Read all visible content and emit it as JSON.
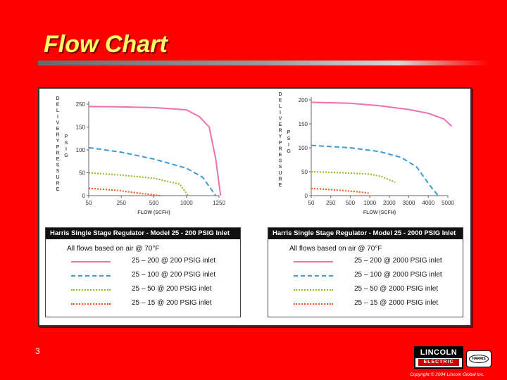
{
  "slide": {
    "title": "Flow Chart",
    "page_number": "3",
    "copyright": "Copyright © 2004 Lincoln Global Inc.",
    "colors": {
      "background": "#ff0000",
      "title": "#ffff66"
    }
  },
  "logos": {
    "lincoln_top": "LINCOLN",
    "lincoln_bottom": "ELECTRIC",
    "harris": "HARRIS"
  },
  "chart_data": [
    {
      "type": "line",
      "title": "",
      "ylabel_left": "DELIVERY PRESSURE",
      "ylabel_unit": "PSIG",
      "xlabel": "FLOW (SCFH)",
      "ylim": [
        0,
        250
      ],
      "yticks": [
        "250",
        "150",
        "100",
        "50",
        "0"
      ],
      "xticks": [
        "50",
        "250",
        "500",
        "1000",
        "1250"
      ],
      "series": [
        {
          "style": "solid",
          "color": "#f070b0",
          "x": [
            0,
            1,
            2,
            3,
            3.4,
            3.7,
            3.9,
            4.05
          ],
          "y": [
            240,
            238,
            235,
            225,
            195,
            150,
            80,
            0
          ]
        },
        {
          "style": "dashed",
          "color": "#3a9ad8",
          "x": [
            0,
            1,
            2,
            3,
            3.5,
            3.9
          ],
          "y": [
            105,
            95,
            80,
            60,
            40,
            0
          ]
        },
        {
          "style": "dotted",
          "color": "#88bb22",
          "x": [
            0,
            1,
            2,
            2.8,
            3.05
          ],
          "y": [
            50,
            45,
            38,
            25,
            0
          ]
        },
        {
          "style": "dotted",
          "color": "#ee5511",
          "x": [
            0,
            0.8,
            1.6,
            2.2
          ],
          "y": [
            16,
            12,
            5,
            0
          ]
        }
      ],
      "legend": {
        "header": "Harris Single Stage Regulator - Model 25 - 200 PSIG Inlet",
        "note": "All flows based on air @ 70°F",
        "entries": [
          "25 – 200 @ 200 PSIG inlet",
          "25 – 100 @ 200 PSIG inlet",
          "25 – 50 @ 200 PSIG inlet",
          "25 – 15 @ 200 PSIG inlet"
        ]
      }
    },
    {
      "type": "line",
      "title": "",
      "ylabel_left": "DELIVERY PRESSURE",
      "ylabel_unit": "PSIG",
      "xlabel": "FLOW (SCFH)",
      "ylim": [
        0,
        200
      ],
      "yticks": [
        "200",
        "150",
        "100",
        "50",
        "0"
      ],
      "xticks": [
        "50",
        "250",
        "500",
        "1000",
        "2000",
        "3000",
        "4000",
        "5000"
      ],
      "series": [
        {
          "style": "solid",
          "color": "#f070b0",
          "x": [
            0,
            2,
            3.5,
            5,
            6,
            6.8,
            7.2
          ],
          "y": [
            195,
            193,
            188,
            180,
            172,
            160,
            145
          ]
        },
        {
          "style": "dashed",
          "color": "#3a9ad8",
          "x": [
            0,
            2,
            3.5,
            4.6,
            5.4,
            6.1,
            6.5
          ],
          "y": [
            105,
            100,
            92,
            80,
            60,
            20,
            0
          ]
        },
        {
          "style": "dotted",
          "color": "#88bb22",
          "x": [
            0,
            1.5,
            3,
            3.6,
            4.3
          ],
          "y": [
            50,
            48,
            45,
            40,
            28
          ]
        },
        {
          "style": "dotted",
          "color": "#ee5511",
          "x": [
            0,
            1.2,
            2.4,
            3.0
          ],
          "y": [
            15,
            12,
            8,
            5
          ]
        }
      ],
      "legend": {
        "header": "Harris Single Stage Regulator - Model 25 - 2000 PSIG Inlet",
        "note": "All flows based on air @ 70°F",
        "entries": [
          "25 – 200 @ 2000 PSIG inlet",
          "25 – 100 @ 2000 PSIG inlet",
          "25 – 50 @ 2000 PSIG inlet",
          "25 – 15 @ 2000 PSIG inlet"
        ]
      }
    }
  ]
}
